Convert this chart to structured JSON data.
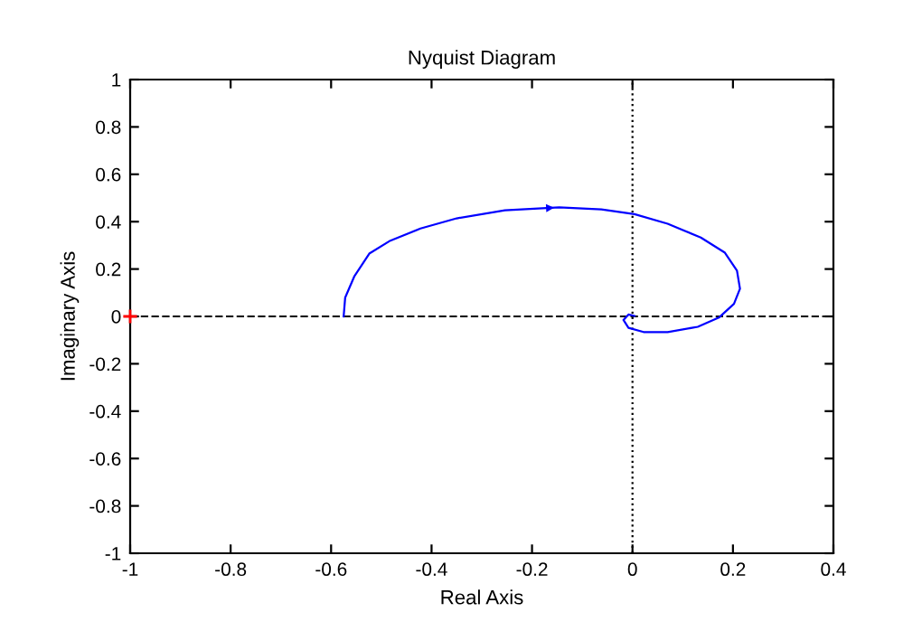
{
  "chart_data": {
    "type": "line",
    "title": "Nyquist Diagram",
    "xlabel": "Real Axis",
    "ylabel": "Imaginary Axis",
    "series": [
      {
        "color": "#0000ff",
        "x": [
          -0.575,
          -0.572,
          -0.554,
          -0.524,
          -0.482,
          -0.422,
          -0.35,
          -0.254,
          -0.146,
          -0.062,
          0.004,
          0.07,
          0.136,
          0.184,
          0.208,
          0.214,
          0.202,
          0.172,
          0.13,
          0.07,
          0.022,
          -0.008,
          -0.018,
          -0.008,
          0.004
        ],
        "values": [
          0,
          0.079,
          0.168,
          0.265,
          0.32,
          0.371,
          0.414,
          0.448,
          0.46,
          0.452,
          0.432,
          0.391,
          0.333,
          0.269,
          0.193,
          0.117,
          0.053,
          -0.005,
          -0.044,
          -0.066,
          -0.066,
          -0.048,
          -0.015,
          0.008,
          0.002
        ]
      },
      {
        "type": "scatter",
        "color": "#ff0000",
        "marker": "cross",
        "x": [
          -1
        ],
        "values": [
          0
        ]
      }
    ],
    "xlim": [
      -1,
      0.4
    ],
    "xticks": [
      -1,
      -0.8,
      -0.6,
      -0.4,
      -0.2,
      0,
      0.2,
      0.4
    ],
    "ylim": [
      -1,
      1
    ],
    "yticks": [
      -1,
      -0.8,
      -0.6,
      -0.4,
      -0.2,
      0,
      0.2,
      0.4,
      0.6,
      0.8,
      1
    ],
    "ref_lines": [
      {
        "axis": "x",
        "value": 0,
        "color": "#000000",
        "line_style": "dotted"
      },
      {
        "axis": "y",
        "value": 0,
        "color": "#000000",
        "line_style": "dashed"
      }
    ],
    "grid": false,
    "legend": false,
    "marker": "none",
    "line_style": "solid"
  }
}
